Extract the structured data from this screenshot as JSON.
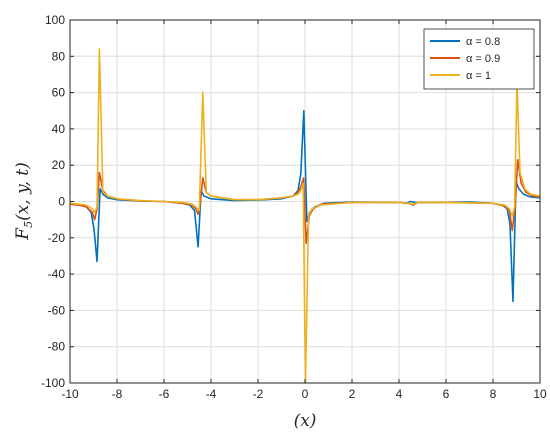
{
  "chart_data": {
    "type": "line",
    "title": "",
    "xlabel": "(x)",
    "ylabel": "F5(x, y, t)",
    "ylabel_main": "F",
    "ylabel_sub": "5",
    "ylabel_args": "(x, y, t)",
    "xlim": [
      -10,
      10
    ],
    "ylim": [
      -100,
      100
    ],
    "xticks": [
      -10,
      -8,
      -6,
      -4,
      -2,
      0,
      2,
      4,
      6,
      8,
      10
    ],
    "yticks": [
      -100,
      -80,
      -60,
      -40,
      -20,
      0,
      20,
      40,
      60,
      80,
      100
    ],
    "grid": true,
    "legend_position": "top-right",
    "series": [
      {
        "name": "α = 0.8",
        "color": "#0072BD",
        "points": [
          [
            -10,
            -1.5
          ],
          [
            -9.6,
            -2
          ],
          [
            -9.3,
            -3
          ],
          [
            -9.1,
            -6
          ],
          [
            -8.98,
            -15
          ],
          [
            -8.85,
            -33
          ],
          [
            -8.72,
            7
          ],
          [
            -8.6,
            4
          ],
          [
            -8.4,
            2
          ],
          [
            -8.0,
            1
          ],
          [
            -7.0,
            0.3
          ],
          [
            -6.0,
            0
          ],
          [
            -5.2,
            -1
          ],
          [
            -4.9,
            -2
          ],
          [
            -4.7,
            -5
          ],
          [
            -4.55,
            -25
          ],
          [
            -4.42,
            6
          ],
          [
            -4.3,
            3
          ],
          [
            -4.0,
            1.5
          ],
          [
            -3.0,
            0.5
          ],
          [
            -2.0,
            0.8
          ],
          [
            -1.0,
            1.5
          ],
          [
            -0.5,
            3
          ],
          [
            -0.3,
            6
          ],
          [
            -0.18,
            15
          ],
          [
            -0.05,
            50
          ],
          [
            0.08,
            -11
          ],
          [
            0.2,
            -6
          ],
          [
            0.4,
            -3
          ],
          [
            0.8,
            -1
          ],
          [
            2.0,
            -0.3
          ],
          [
            4.0,
            -0.5
          ],
          [
            4.3,
            -1
          ],
          [
            4.5,
            0
          ],
          [
            4.7,
            -0.5
          ],
          [
            5.5,
            -0.5
          ],
          [
            7.0,
            -0.3
          ],
          [
            8.0,
            -1
          ],
          [
            8.4,
            -2
          ],
          [
            8.6,
            -4
          ],
          [
            8.72,
            -12
          ],
          [
            8.85,
            -55
          ],
          [
            8.98,
            11
          ],
          [
            9.1,
            7
          ],
          [
            9.3,
            4
          ],
          [
            9.6,
            2.5
          ],
          [
            10,
            2
          ]
        ]
      },
      {
        "name": "α = 0.9",
        "color": "#D95319",
        "points": [
          [
            -10,
            -1.5
          ],
          [
            -9.6,
            -2
          ],
          [
            -9.3,
            -3
          ],
          [
            -9.05,
            -6
          ],
          [
            -8.95,
            -10
          ],
          [
            -8.85,
            -4
          ],
          [
            -8.75,
            16
          ],
          [
            -8.6,
            6
          ],
          [
            -8.4,
            3
          ],
          [
            -8.0,
            1.5
          ],
          [
            -7.0,
            0.3
          ],
          [
            -6.0,
            0
          ],
          [
            -5.2,
            -1
          ],
          [
            -4.8,
            -2
          ],
          [
            -4.65,
            -4
          ],
          [
            -4.55,
            -7
          ],
          [
            -4.45,
            0
          ],
          [
            -4.35,
            13
          ],
          [
            -4.2,
            5
          ],
          [
            -4.0,
            3
          ],
          [
            -3.0,
            1
          ],
          [
            -2.0,
            1
          ],
          [
            -1.0,
            2
          ],
          [
            -0.5,
            3
          ],
          [
            -0.3,
            5
          ],
          [
            -0.18,
            8
          ],
          [
            -0.06,
            13
          ],
          [
            0.05,
            -23
          ],
          [
            0.18,
            -8
          ],
          [
            0.35,
            -4
          ],
          [
            0.7,
            -1.5
          ],
          [
            2.0,
            -0.5
          ],
          [
            4.0,
            -0.5
          ],
          [
            4.4,
            -1
          ],
          [
            4.6,
            -2
          ],
          [
            4.8,
            -0.5
          ],
          [
            6.0,
            -0.5
          ],
          [
            8.0,
            -1
          ],
          [
            8.5,
            -2.5
          ],
          [
            8.7,
            -5
          ],
          [
            8.82,
            -16
          ],
          [
            8.95,
            -2
          ],
          [
            9.05,
            23
          ],
          [
            9.2,
            10
          ],
          [
            9.4,
            5
          ],
          [
            9.7,
            3
          ],
          [
            10,
            2.5
          ]
        ]
      },
      {
        "name": "α = 1",
        "color": "#EDB120",
        "points": [
          [
            -10,
            -1
          ],
          [
            -9.6,
            -1.5
          ],
          [
            -9.3,
            -2
          ],
          [
            -9.05,
            -4
          ],
          [
            -8.95,
            -6
          ],
          [
            -8.85,
            -3
          ],
          [
            -8.75,
            84
          ],
          [
            -8.6,
            5
          ],
          [
            -8.4,
            3
          ],
          [
            -8.0,
            1.5
          ],
          [
            -7.0,
            0.5
          ],
          [
            -6.0,
            0
          ],
          [
            -5.2,
            -0.5
          ],
          [
            -4.8,
            -1.5
          ],
          [
            -4.65,
            -3
          ],
          [
            -4.5,
            -5
          ],
          [
            -4.35,
            60
          ],
          [
            -4.2,
            5
          ],
          [
            -4.0,
            3
          ],
          [
            -3.0,
            1
          ],
          [
            -2.0,
            1
          ],
          [
            -1.0,
            2
          ],
          [
            -0.5,
            3
          ],
          [
            -0.3,
            4
          ],
          [
            -0.18,
            6
          ],
          [
            -0.08,
            10
          ],
          [
            0.02,
            -100
          ],
          [
            0.15,
            -8
          ],
          [
            0.3,
            -4
          ],
          [
            0.6,
            -2
          ],
          [
            2.0,
            -0.5
          ],
          [
            4.0,
            -0.5
          ],
          [
            4.4,
            -1
          ],
          [
            4.6,
            -1.5
          ],
          [
            4.8,
            -0.5
          ],
          [
            6.0,
            -0.5
          ],
          [
            8.0,
            -1
          ],
          [
            8.5,
            -2
          ],
          [
            8.7,
            -4
          ],
          [
            8.82,
            -8
          ],
          [
            8.92,
            -3
          ],
          [
            9.02,
            66
          ],
          [
            9.15,
            16
          ],
          [
            9.35,
            7
          ],
          [
            9.6,
            4
          ],
          [
            10,
            3
          ]
        ]
      }
    ]
  }
}
